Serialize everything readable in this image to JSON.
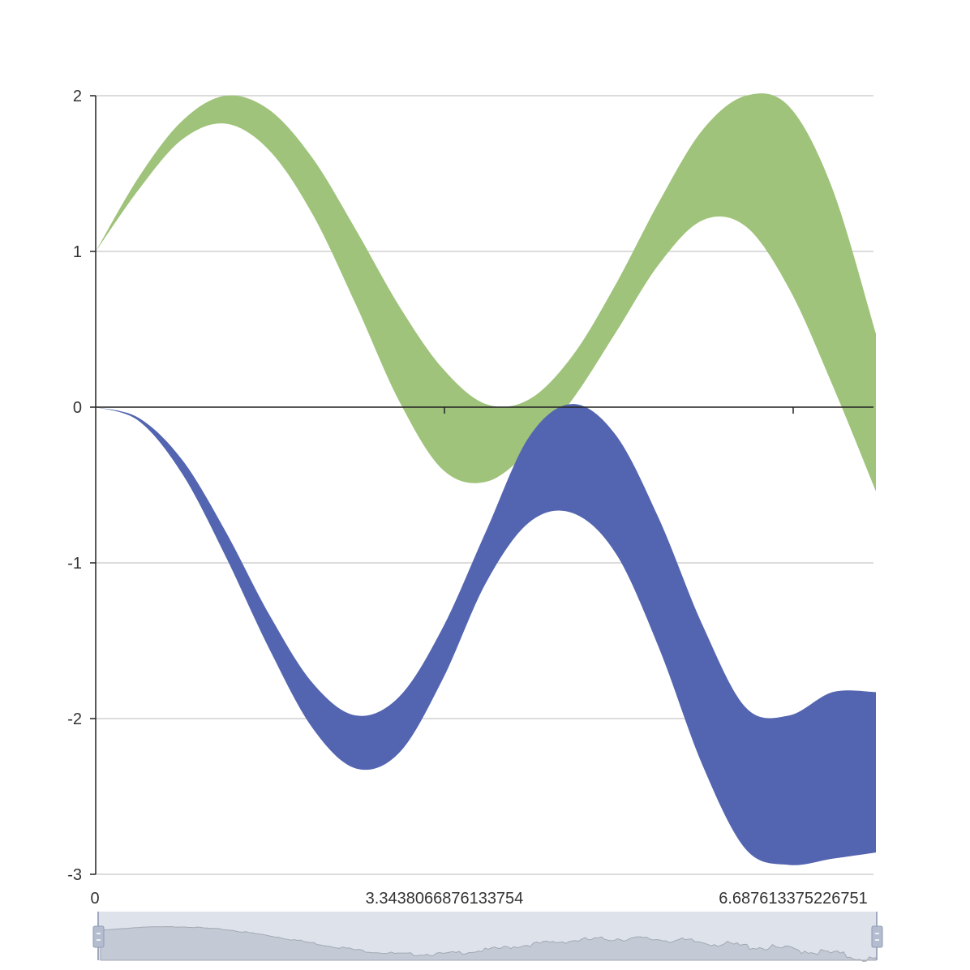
{
  "chart_data": {
    "type": "area",
    "title": "",
    "xlabel": "",
    "ylabel": "",
    "xlim": [
      0,
      9.0
    ],
    "ylim": [
      -3,
      2
    ],
    "grid": true,
    "legend": "none",
    "y_ticks": [
      "2",
      "1",
      "0",
      "-1",
      "-2",
      "-3"
    ],
    "y_tick_values": [
      2,
      1,
      0,
      -1,
      -2,
      -3
    ],
    "x_ticks": [
      "0",
      "3.3438066876133754",
      "6.687613375226751"
    ],
    "x_tick_values": [
      0,
      3.3438066876133754,
      6.687613375226751
    ],
    "x": [
      0,
      0.5,
      1.0,
      1.5,
      2.0,
      2.5,
      3.0,
      3.5,
      4.0,
      4.5,
      5.0,
      5.5,
      6.0,
      6.5,
      7.0,
      7.5,
      8.0,
      8.5,
      9.0
    ],
    "series": [
      {
        "color": "#9fc37a",
        "upper": [
          1.0,
          1.48,
          1.84,
          2.0,
          1.91,
          1.6,
          1.14,
          0.65,
          0.25,
          0.02,
          0.05,
          0.33,
          0.79,
          1.32,
          1.78,
          2.0,
          1.93,
          1.4,
          0.47
        ],
        "lower": [
          1.0,
          1.4,
          1.72,
          1.82,
          1.65,
          1.24,
          0.66,
          0.04,
          -0.4,
          -0.48,
          -0.28,
          0.05,
          0.48,
          0.92,
          1.2,
          1.16,
          0.76,
          0.14,
          -0.54
        ]
      },
      {
        "color": "#5365b0",
        "upper": [
          0.0,
          -0.07,
          -0.34,
          -0.8,
          -1.33,
          -1.77,
          -1.98,
          -1.86,
          -1.42,
          -0.8,
          -0.19,
          0.02,
          -0.18,
          -0.72,
          -1.4,
          -1.93,
          -1.98,
          -1.83,
          -1.83
        ],
        "lower": [
          0.0,
          -0.09,
          -0.43,
          -0.96,
          -1.55,
          -2.06,
          -2.32,
          -2.22,
          -1.75,
          -1.13,
          -0.74,
          -0.68,
          -0.94,
          -1.55,
          -2.3,
          -2.84,
          -2.94,
          -2.9,
          -2.86
        ]
      }
    ]
  }
}
